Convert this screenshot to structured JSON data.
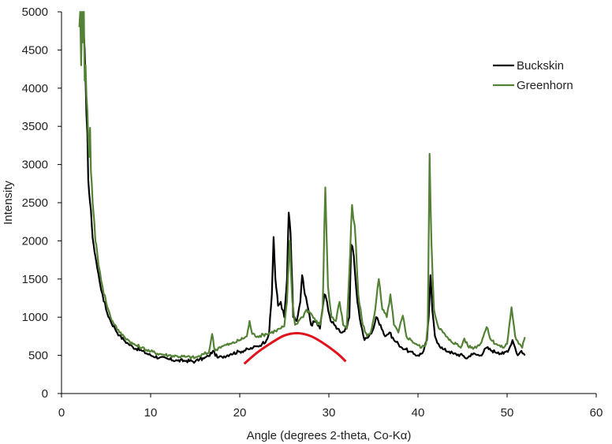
{
  "chart_data": {
    "type": "line",
    "title": "",
    "xlabel": "Angle (degrees 2-theta, Co-Kα)",
    "ylabel": "Intensity",
    "xlim": [
      0,
      60
    ],
    "ylim": [
      0,
      5000
    ],
    "xticks": [
      0,
      10,
      20,
      30,
      40,
      50,
      60
    ],
    "yticks": [
      0,
      500,
      1000,
      1500,
      2000,
      2500,
      3000,
      3500,
      4000,
      4500,
      5000
    ],
    "grid": false,
    "legend_position": "upper right",
    "series": [
      {
        "name": "Buckskin",
        "color": "#000000",
        "x": [
          2.3,
          2.5,
          2.7,
          2.9,
          3.0,
          3.2,
          3.4,
          3.6,
          3.8,
          4.0,
          4.3,
          4.6,
          5.0,
          5.5,
          6.0,
          6.5,
          7.0,
          7.5,
          8.0,
          9.0,
          10.0,
          11.0,
          12.0,
          13.0,
          14.0,
          15.0,
          15.5,
          16.0,
          16.5,
          17.0,
          17.5,
          18.0,
          19.0,
          20.0,
          21.0,
          21.5,
          22.0,
          22.5,
          23.0,
          23.3,
          23.6,
          23.8,
          24.0,
          24.3,
          24.6,
          25.0,
          25.3,
          25.5,
          25.7,
          26.0,
          26.4,
          26.8,
          27.0,
          27.3,
          27.7,
          28.0,
          28.5,
          29.0,
          29.5,
          29.8,
          30.2,
          30.6,
          31.0,
          31.5,
          32.0,
          32.3,
          32.5,
          32.8,
          33.2,
          33.6,
          34.0,
          34.5,
          35.0,
          35.3,
          35.8,
          36.3,
          36.8,
          37.3,
          37.8,
          38.2,
          38.6,
          39.0,
          39.5,
          40.0,
          40.5,
          41.0,
          41.2,
          41.4,
          41.6,
          41.9,
          42.3,
          42.8,
          43.5,
          44.0,
          45.0,
          45.5,
          46.0,
          47.0,
          47.7,
          48.3,
          49.0,
          49.6,
          50.2,
          50.6,
          50.9,
          51.2,
          51.6,
          52.0
        ],
        "values": [
          5000,
          4700,
          4100,
          3400,
          2800,
          2500,
          2200,
          1950,
          1800,
          1650,
          1450,
          1300,
          1100,
          950,
          850,
          760,
          700,
          650,
          610,
          560,
          500,
          470,
          450,
          430,
          430,
          420,
          450,
          460,
          490,
          560,
          470,
          480,
          520,
          550,
          580,
          600,
          620,
          650,
          700,
          800,
          1300,
          2050,
          1500,
          1150,
          1200,
          1000,
          1500,
          2370,
          2100,
          1000,
          950,
          1200,
          1550,
          1300,
          1100,
          900,
          950,
          850,
          1300,
          1200,
          950,
          900,
          850,
          800,
          850,
          1000,
          1950,
          1800,
          1200,
          900,
          700,
          750,
          850,
          1000,
          900,
          750,
          800,
          700,
          650,
          600,
          580,
          550,
          520,
          500,
          530,
          700,
          1000,
          1550,
          1100,
          750,
          650,
          580,
          550,
          520,
          500,
          460,
          520,
          500,
          600,
          560,
          540,
          520,
          580,
          700,
          600,
          500,
          560,
          500
        ]
      },
      {
        "name": "Greenhorn",
        "color": "#538135",
        "x": [
          2.0,
          2.1,
          2.2,
          2.3,
          2.4,
          2.5,
          2.6,
          2.7,
          2.8,
          2.9,
          3.0,
          3.1,
          3.2,
          3.3,
          3.4,
          3.6,
          3.8,
          4.0,
          4.3,
          4.6,
          5.0,
          5.5,
          6.0,
          6.5,
          7.0,
          7.5,
          8.0,
          9.0,
          10.0,
          11.0,
          12.0,
          13.0,
          14.0,
          15.0,
          15.5,
          16.0,
          16.5,
          16.9,
          17.2,
          17.6,
          18.0,
          19.0,
          20.0,
          20.8,
          21.1,
          21.4,
          22.0,
          23.0,
          24.0,
          24.5,
          25.0,
          25.3,
          25.6,
          25.9,
          26.2,
          26.6,
          27.0,
          27.5,
          28.0,
          28.5,
          29.0,
          29.3,
          29.6,
          29.9,
          30.3,
          30.8,
          31.2,
          31.6,
          32.0,
          32.3,
          32.6,
          32.9,
          33.3,
          33.8,
          34.3,
          34.7,
          35.2,
          35.6,
          36.0,
          36.5,
          36.9,
          37.3,
          37.8,
          38.3,
          38.7,
          39.2,
          39.8,
          40.4,
          40.9,
          41.1,
          41.3,
          41.5,
          41.8,
          42.2,
          42.8,
          43.5,
          44.3,
          44.8,
          45.2,
          45.6,
          46.3,
          47.0,
          47.7,
          48.2,
          48.8,
          49.5,
          50.0,
          50.5,
          50.9,
          51.3,
          51.7,
          51.9,
          52.0
        ],
        "values": [
          4800,
          5000,
          4300,
          5000,
          4600,
          5000,
          4100,
          4300,
          3900,
          3700,
          3350,
          3100,
          3480,
          2900,
          2750,
          2350,
          2000,
          1850,
          1600,
          1400,
          1200,
          1000,
          900,
          800,
          750,
          700,
          650,
          600,
          550,
          520,
          500,
          490,
          480,
          470,
          490,
          520,
          530,
          780,
          560,
          600,
          620,
          650,
          700,
          750,
          950,
          780,
          750,
          780,
          820,
          850,
          880,
          1200,
          2000,
          1200,
          900,
          950,
          1000,
          1100,
          1050,
          950,
          900,
          1100,
          2700,
          1400,
          1000,
          950,
          1200,
          900,
          850,
          1600,
          2470,
          2200,
          1300,
          900,
          750,
          800,
          1100,
          1500,
          1100,
          1000,
          1300,
          900,
          800,
          1020,
          750,
          700,
          650,
          600,
          650,
          900,
          3140,
          2000,
          1100,
          900,
          800,
          700,
          650,
          600,
          720,
          620,
          600,
          650,
          870,
          700,
          650,
          600,
          650,
          1130,
          750,
          650,
          600,
          700,
          740
        ]
      }
    ],
    "annotations": [
      {
        "type": "curve",
        "color": "#e0121b",
        "description": "Red amorphous hump",
        "x": [
          20.5,
          22.0,
          23.5,
          25.0,
          26.5,
          28.0,
          29.5,
          31.0,
          31.9
        ],
        "values": [
          390,
          540,
          660,
          760,
          790,
          750,
          650,
          520,
          420
        ]
      }
    ]
  },
  "axes": {
    "xlabel": "Angle (degrees 2-theta, Co-Kα)",
    "ylabel": "Intensity"
  },
  "legend": {
    "items": [
      {
        "label": "Buckskin",
        "color": "#000000"
      },
      {
        "label": "Greenhorn",
        "color": "#538135"
      }
    ]
  }
}
